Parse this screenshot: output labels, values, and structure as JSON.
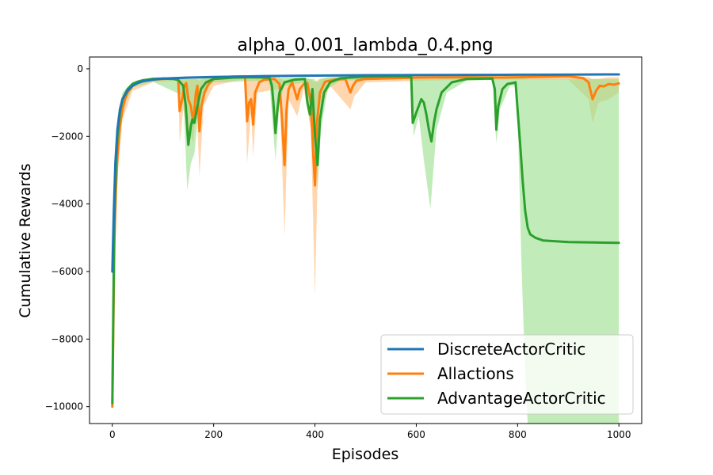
{
  "chart_data": {
    "type": "line",
    "title": "alpha_0.001_lambda_0.4.png",
    "xlabel": "Episodes",
    "ylabel": "Cumulative Rewards",
    "xlim": [
      -45,
      1045
    ],
    "ylim": [
      -10500,
      350
    ],
    "xticks": [
      0,
      200,
      400,
      600,
      800,
      1000
    ],
    "yticks": [
      0,
      -2000,
      -4000,
      -6000,
      -8000,
      -10000
    ],
    "xtick_labels": [
      "0",
      "200",
      "400",
      "600",
      "800",
      "1000"
    ],
    "ytick_labels": [
      "0",
      "−2000",
      "−4000",
      "−6000",
      "−8000",
      "−10000"
    ],
    "grid": false,
    "legend_position": "lower-right",
    "series": [
      {
        "name": "DiscreteActorCritic",
        "color": "#1f77b4",
        "points": [
          [
            0,
            -6000
          ],
          [
            3,
            -4200
          ],
          [
            6,
            -2800
          ],
          [
            10,
            -1800
          ],
          [
            15,
            -1200
          ],
          [
            20,
            -900
          ],
          [
            30,
            -650
          ],
          [
            40,
            -500
          ],
          [
            50,
            -420
          ],
          [
            60,
            -370
          ],
          [
            80,
            -320
          ],
          [
            100,
            -290
          ],
          [
            150,
            -260
          ],
          [
            200,
            -240
          ],
          [
            300,
            -215
          ],
          [
            400,
            -200
          ],
          [
            500,
            -190
          ],
          [
            600,
            -185
          ],
          [
            700,
            -180
          ],
          [
            800,
            -175
          ],
          [
            900,
            -170
          ],
          [
            1000,
            -165
          ]
        ]
      },
      {
        "name": "Allactions",
        "color": "#ff7f0e",
        "band_color": "#ffbb78",
        "points": [
          [
            0,
            -10000
          ],
          [
            2,
            -7500
          ],
          [
            4,
            -5200
          ],
          [
            7,
            -3600
          ],
          [
            10,
            -2600
          ],
          [
            15,
            -1700
          ],
          [
            20,
            -1200
          ],
          [
            25,
            -900
          ],
          [
            30,
            -700
          ],
          [
            40,
            -500
          ],
          [
            50,
            -400
          ],
          [
            60,
            -360
          ],
          [
            80,
            -320
          ],
          [
            100,
            -300
          ],
          [
            120,
            -290
          ],
          [
            130,
            -300
          ],
          [
            133,
            -1250
          ],
          [
            138,
            -900
          ],
          [
            142,
            -500
          ],
          [
            146,
            -420
          ],
          [
            150,
            -900
          ],
          [
            155,
            -1100
          ],
          [
            160,
            -1600
          ],
          [
            165,
            -700
          ],
          [
            168,
            -500
          ],
          [
            172,
            -1850
          ],
          [
            176,
            -1100
          ],
          [
            182,
            -700
          ],
          [
            190,
            -450
          ],
          [
            200,
            -300
          ],
          [
            220,
            -250
          ],
          [
            240,
            -230
          ],
          [
            262,
            -230
          ],
          [
            266,
            -1550
          ],
          [
            270,
            -1000
          ],
          [
            274,
            -900
          ],
          [
            278,
            -1650
          ],
          [
            282,
            -700
          ],
          [
            290,
            -400
          ],
          [
            300,
            -320
          ],
          [
            320,
            -300
          ],
          [
            330,
            -450
          ],
          [
            335,
            -1500
          ],
          [
            340,
            -2850
          ],
          [
            344,
            -1200
          ],
          [
            348,
            -600
          ],
          [
            355,
            -400
          ],
          [
            365,
            -900
          ],
          [
            370,
            -600
          ],
          [
            378,
            -450
          ],
          [
            385,
            -420
          ],
          [
            392,
            -1000
          ],
          [
            397,
            -2600
          ],
          [
            400,
            -3450
          ],
          [
            404,
            -1600
          ],
          [
            410,
            -700
          ],
          [
            420,
            -380
          ],
          [
            440,
            -320
          ],
          [
            460,
            -300
          ],
          [
            470,
            -700
          ],
          [
            475,
            -500
          ],
          [
            482,
            -350
          ],
          [
            500,
            -300
          ],
          [
            550,
            -280
          ],
          [
            600,
            -260
          ],
          [
            640,
            -255
          ],
          [
            700,
            -250
          ],
          [
            760,
            -260
          ],
          [
            800,
            -250
          ],
          [
            850,
            -235
          ],
          [
            900,
            -220
          ],
          [
            930,
            -280
          ],
          [
            940,
            -400
          ],
          [
            948,
            -900
          ],
          [
            955,
            -650
          ],
          [
            962,
            -500
          ],
          [
            970,
            -520
          ],
          [
            980,
            -450
          ],
          [
            990,
            -470
          ],
          [
            1000,
            -430
          ]
        ],
        "band": [
          [
            0,
            -10100,
            -9900
          ],
          [
            5,
            -5500,
            -3200
          ],
          [
            10,
            -3200,
            -2000
          ],
          [
            20,
            -1500,
            -900
          ],
          [
            40,
            -650,
            -400
          ],
          [
            80,
            -400,
            -260
          ],
          [
            130,
            -350,
            -250
          ],
          [
            133,
            -2200,
            -300
          ],
          [
            140,
            -1200,
            -300
          ],
          [
            150,
            -1800,
            -300
          ],
          [
            160,
            -2200,
            -300
          ],
          [
            166,
            -900,
            -300
          ],
          [
            172,
            -3200,
            -350
          ],
          [
            180,
            -1100,
            -300
          ],
          [
            200,
            -500,
            -220
          ],
          [
            262,
            -300,
            -180
          ],
          [
            266,
            -2800,
            -300
          ],
          [
            274,
            -1200,
            -300
          ],
          [
            278,
            -2600,
            -300
          ],
          [
            286,
            -700,
            -250
          ],
          [
            330,
            -600,
            -250
          ],
          [
            340,
            -4950,
            -350
          ],
          [
            348,
            -900,
            -300
          ],
          [
            365,
            -1400,
            -300
          ],
          [
            378,
            -600,
            -300
          ],
          [
            392,
            -1800,
            -300
          ],
          [
            400,
            -6750,
            -400
          ],
          [
            408,
            -1300,
            -300
          ],
          [
            430,
            -500,
            -260
          ],
          [
            470,
            -1200,
            -250
          ],
          [
            478,
            -800,
            -250
          ],
          [
            500,
            -400,
            -220
          ],
          [
            700,
            -320,
            -180
          ],
          [
            900,
            -320,
            -170
          ],
          [
            940,
            -900,
            -250
          ],
          [
            948,
            -1600,
            -300
          ],
          [
            960,
            -1000,
            -300
          ],
          [
            980,
            -900,
            -250
          ],
          [
            1000,
            -700,
            -250
          ]
        ]
      },
      {
        "name": "AdvantageActorCritic",
        "color": "#2ca02c",
        "band_color": "#98df8a",
        "points": [
          [
            0,
            -9900
          ],
          [
            2,
            -7000
          ],
          [
            4,
            -4500
          ],
          [
            7,
            -2900
          ],
          [
            10,
            -2000
          ],
          [
            15,
            -1300
          ],
          [
            20,
            -900
          ],
          [
            30,
            -600
          ],
          [
            40,
            -450
          ],
          [
            50,
            -380
          ],
          [
            60,
            -340
          ],
          [
            80,
            -300
          ],
          [
            100,
            -290
          ],
          [
            120,
            -300
          ],
          [
            130,
            -330
          ],
          [
            140,
            -500
          ],
          [
            145,
            -1100
          ],
          [
            150,
            -2250
          ],
          [
            155,
            -1700
          ],
          [
            158,
            -1500
          ],
          [
            162,
            -1600
          ],
          [
            168,
            -1100
          ],
          [
            175,
            -600
          ],
          [
            185,
            -400
          ],
          [
            200,
            -300
          ],
          [
            240,
            -260
          ],
          [
            280,
            -250
          ],
          [
            310,
            -260
          ],
          [
            315,
            -500
          ],
          [
            318,
            -1000
          ],
          [
            322,
            -1900
          ],
          [
            326,
            -1200
          ],
          [
            330,
            -700
          ],
          [
            340,
            -400
          ],
          [
            360,
            -320
          ],
          [
            380,
            -300
          ],
          [
            385,
            -1000
          ],
          [
            390,
            -1350
          ],
          [
            395,
            -600
          ],
          [
            400,
            -2000
          ],
          [
            405,
            -2850
          ],
          [
            410,
            -1500
          ],
          [
            418,
            -700
          ],
          [
            430,
            -400
          ],
          [
            450,
            -280
          ],
          [
            500,
            -230
          ],
          [
            560,
            -220
          ],
          [
            590,
            -230
          ],
          [
            593,
            -1600
          ],
          [
            600,
            -1300
          ],
          [
            610,
            -900
          ],
          [
            615,
            -1000
          ],
          [
            620,
            -1350
          ],
          [
            625,
            -1800
          ],
          [
            630,
            -2150
          ],
          [
            635,
            -1600
          ],
          [
            640,
            -1200
          ],
          [
            650,
            -700
          ],
          [
            670,
            -400
          ],
          [
            700,
            -300
          ],
          [
            750,
            -290
          ],
          [
            755,
            -600
          ],
          [
            758,
            -1800
          ],
          [
            762,
            -1100
          ],
          [
            770,
            -600
          ],
          [
            780,
            -450
          ],
          [
            790,
            -420
          ],
          [
            796,
            -400
          ],
          [
            800,
            -1200
          ],
          [
            805,
            -2200
          ],
          [
            810,
            -3300
          ],
          [
            815,
            -4200
          ],
          [
            820,
            -4700
          ],
          [
            825,
            -4900
          ],
          [
            835,
            -5000
          ],
          [
            850,
            -5080
          ],
          [
            900,
            -5130
          ],
          [
            950,
            -5140
          ],
          [
            1000,
            -5150
          ]
        ],
        "band": [
          [
            0,
            -10000,
            -9800
          ],
          [
            5,
            -5000,
            -3000
          ],
          [
            10,
            -2600,
            -1500
          ],
          [
            20,
            -1200,
            -700
          ],
          [
            40,
            -550,
            -380
          ],
          [
            80,
            -380,
            -250
          ],
          [
            140,
            -800,
            -250
          ],
          [
            148,
            -3600,
            -300
          ],
          [
            155,
            -2800,
            -300
          ],
          [
            162,
            -2500,
            -300
          ],
          [
            170,
            -1300,
            -300
          ],
          [
            185,
            -600,
            -250
          ],
          [
            200,
            -400,
            -220
          ],
          [
            310,
            -350,
            -220
          ],
          [
            322,
            -2700,
            -300
          ],
          [
            330,
            -1000,
            -280
          ],
          [
            340,
            -500,
            -260
          ],
          [
            380,
            -400,
            -260
          ],
          [
            390,
            -1600,
            -300
          ],
          [
            398,
            -900,
            -300
          ],
          [
            405,
            -3600,
            -400
          ],
          [
            412,
            -1800,
            -300
          ],
          [
            425,
            -600,
            -250
          ],
          [
            450,
            -350,
            -220
          ],
          [
            590,
            -300,
            -200
          ],
          [
            595,
            -2000,
            -300
          ],
          [
            605,
            -1400,
            -300
          ],
          [
            615,
            -2700,
            -300
          ],
          [
            628,
            -4150,
            -300
          ],
          [
            640,
            -1800,
            -300
          ],
          [
            660,
            -700,
            -250
          ],
          [
            700,
            -350,
            -220
          ],
          [
            750,
            -330,
            -220
          ],
          [
            758,
            -2200,
            -300
          ],
          [
            765,
            -1200,
            -300
          ],
          [
            785,
            -500,
            -250
          ],
          [
            798,
            -500,
            -240
          ],
          [
            802,
            -2500,
            -250
          ],
          [
            808,
            -6000,
            -260
          ],
          [
            815,
            -9000,
            -280
          ],
          [
            820,
            -10500,
            -300
          ],
          [
            1000,
            -10500,
            -300
          ]
        ]
      }
    ]
  }
}
